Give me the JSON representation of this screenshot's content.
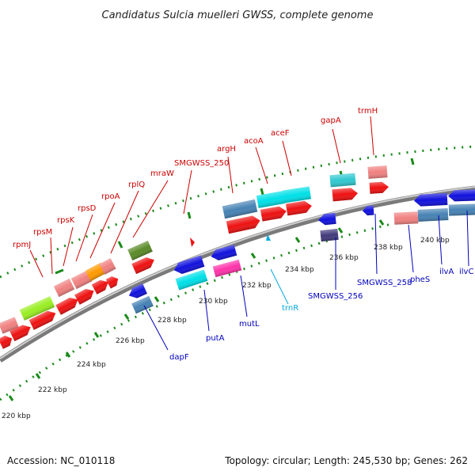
{
  "title": "Candidatus Sulcia muelleri GWSS, complete genome",
  "footer": {
    "accession": "Accession: NC_010118",
    "summary": "Topology: circular; Length: 245,530 bp; Genes: 262"
  },
  "colors": {
    "red": "#ee1111",
    "pink": "#f08080",
    "blue": "#1111dd",
    "steel": "#4682b4",
    "cyan": "#00e0e8",
    "teal": "#30c8d0",
    "lime": "#99ee22",
    "olive": "#5a8a28",
    "orange": "#ff9900",
    "magenta": "#ff33aa",
    "navy": "#403a7a",
    "gray": "#888888",
    "green": "#1a8a1a",
    "label_red": "#cc0000",
    "label_blue": "#0000bb",
    "label_cyan": "#00aadd"
  },
  "ticks": [
    {
      "label": "220 kbp"
    },
    {
      "label": "222 kbp"
    },
    {
      "label": "224 kbp"
    },
    {
      "label": "226 kbp"
    },
    {
      "label": "228 kbp"
    },
    {
      "label": "230 kbp"
    },
    {
      "label": "232 kbp"
    },
    {
      "label": "234 kbp"
    },
    {
      "label": "236 kbp"
    },
    {
      "label": "238 kbp"
    },
    {
      "label": "240 kbp"
    }
  ],
  "gene_labels_top": [
    {
      "name": "rpmJ"
    },
    {
      "name": "rpsM"
    },
    {
      "name": "rpsK"
    },
    {
      "name": "rpsD"
    },
    {
      "name": "rpoA"
    },
    {
      "name": "rplQ"
    },
    {
      "name": "mraW"
    },
    {
      "name": "SMGWSS_250"
    },
    {
      "name": "argH"
    },
    {
      "name": "acoA"
    },
    {
      "name": "aceF"
    },
    {
      "name": "gapA"
    },
    {
      "name": "trmH"
    }
  ],
  "gene_labels_bottom": [
    {
      "name": "dapF",
      "color": "blue"
    },
    {
      "name": "putA",
      "color": "blue"
    },
    {
      "name": "mutL",
      "color": "blue"
    },
    {
      "name": "trnR",
      "color": "cyan"
    },
    {
      "name": "SMGWSS_256",
      "color": "blue"
    },
    {
      "name": "SMGWSS_258",
      "color": "blue"
    },
    {
      "name": "pheS",
      "color": "blue"
    },
    {
      "name": "ilvA",
      "color": "blue"
    },
    {
      "name": "ilvC",
      "color": "blue"
    }
  ]
}
